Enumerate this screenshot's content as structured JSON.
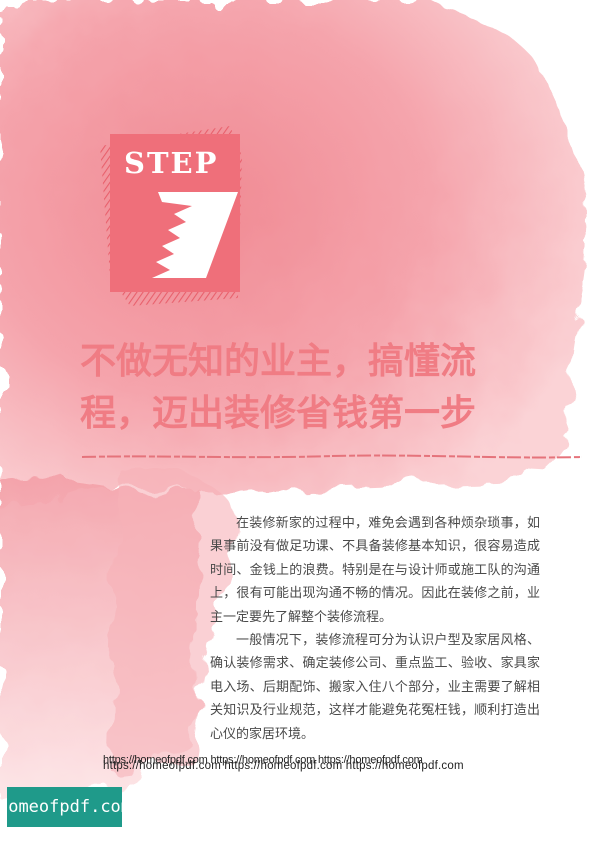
{
  "step": {
    "label": "STEP",
    "number": "7"
  },
  "headline": {
    "line1": "不做无知的业主，搞懂流",
    "line2": "程，迈出装修省钱第一步"
  },
  "body": {
    "paragraph1": "在装修新家的过程中，难免会遇到各种烦杂琐事，如果事前没有做足功课、不具备装修基本知识，很容易造成时间、金钱上的浪费。特别是在与设计师或施工队的沟通上，很有可能出现沟通不畅的情况。因此在装修之前，业主一定要先了解整个装修流程。",
    "paragraph2": "一般情况下，装修流程可分为认识户型及家居风格、确认装修需求、确定装修公司、重点监工、验收、家具家电入场、后期配饰、搬家入住八个部分，业主需要了解相关知识及行业规范，这样才能避免花冤枉钱，顺利打造出心仪的家居环境。"
  },
  "watermark": {
    "line1": "https://homeofpdf.com https://homeofpdf.com https://homeofpdf.com",
    "line2": "https://homeofpdf.com https://homeofpdf.com https://homeofpdf.com",
    "badge": "homeofpdf.com"
  },
  "colors": {
    "accent": "#f07c84",
    "wash": "#f5a6ad",
    "badge": "#1f9a8a"
  }
}
